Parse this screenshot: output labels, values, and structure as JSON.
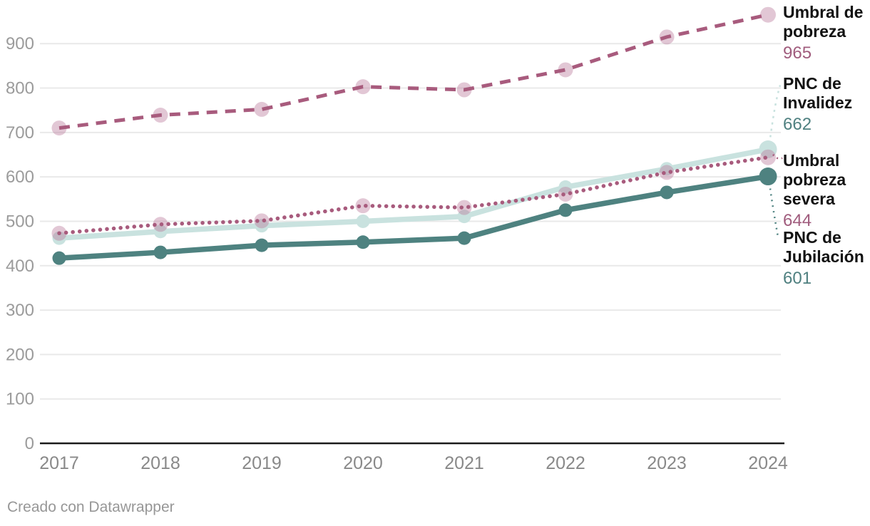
{
  "chart_data": {
    "type": "line",
    "x": [
      2017,
      2018,
      2019,
      2020,
      2021,
      2022,
      2023,
      2024
    ],
    "series": [
      {
        "name": "Umbral de pobreza",
        "values": [
          710,
          739,
          752,
          803,
          796,
          841,
          915,
          965
        ],
        "color": "#a85b7d",
        "style": "dashed",
        "marker": "halo"
      },
      {
        "name": "PNC de Invalidez",
        "values": [
          462,
          477,
          490,
          500,
          511,
          577,
          618,
          662
        ],
        "color": "#c9e2df",
        "style": "solid",
        "marker": "solid"
      },
      {
        "name": "Umbral pobreza severa",
        "values": [
          473,
          493,
          501,
          535,
          531,
          561,
          610,
          644
        ],
        "color": "#a85b7d",
        "style": "dotted",
        "marker": "halo"
      },
      {
        "name": "PNC de Jubilación",
        "values": [
          417,
          430,
          446,
          453,
          462,
          525,
          565,
          601
        ],
        "color": "#4e8280",
        "style": "solid",
        "marker": "solid"
      }
    ],
    "title": "",
    "xlabel": "",
    "ylabel": "",
    "yticks": [
      0,
      100,
      200,
      300,
      400,
      500,
      600,
      700,
      800,
      900
    ],
    "ylim": [
      0,
      1000
    ],
    "grid": "horizontal",
    "gridline_color": "#e9e9e9",
    "axis_line_color": "#1a1a1a",
    "halo_color": "#b97a9a",
    "legend_position": "right-annotations"
  },
  "annotations": [
    {
      "label": "Umbral de pobreza",
      "value": "965",
      "value_color": "#a05c7d",
      "series_index": 0
    },
    {
      "label": "PNC de Invalidez",
      "value": "662",
      "value_color": "#4f8080",
      "series_index": 1
    },
    {
      "label": "Umbral pobreza severa",
      "value": "644",
      "value_color": "#a05c7d",
      "series_index": 2
    },
    {
      "label": "PNC de Jubilación",
      "value": "601",
      "value_color": "#4f8080",
      "series_index": 3
    }
  ],
  "footer": {
    "text": "Creado con Datawrapper"
  }
}
